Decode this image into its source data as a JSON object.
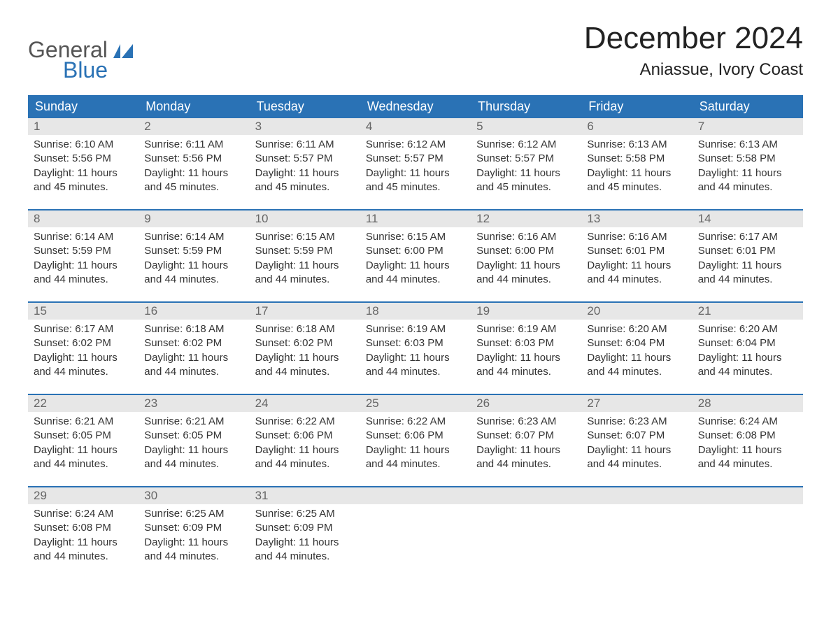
{
  "logo": {
    "main": "General",
    "sub": "Blue",
    "flag_color": "#2a72b5",
    "main_color": "#555555",
    "sub_color": "#2a72b5"
  },
  "title": "December 2024",
  "location": "Aniassue, Ivory Coast",
  "colors": {
    "header_bg": "#2a72b5",
    "header_text": "#ffffff",
    "daynum_bg": "#e7e7e7",
    "daynum_text": "#666666",
    "body_text": "#333333",
    "week_border": "#2a72b5",
    "page_bg": "#ffffff"
  },
  "day_names": [
    "Sunday",
    "Monday",
    "Tuesday",
    "Wednesday",
    "Thursday",
    "Friday",
    "Saturday"
  ],
  "weeks": [
    [
      {
        "num": "1",
        "sunrise": "Sunrise: 6:10 AM",
        "sunset": "Sunset: 5:56 PM",
        "daylight1": "Daylight: 11 hours",
        "daylight2": "and 45 minutes."
      },
      {
        "num": "2",
        "sunrise": "Sunrise: 6:11 AM",
        "sunset": "Sunset: 5:56 PM",
        "daylight1": "Daylight: 11 hours",
        "daylight2": "and 45 minutes."
      },
      {
        "num": "3",
        "sunrise": "Sunrise: 6:11 AM",
        "sunset": "Sunset: 5:57 PM",
        "daylight1": "Daylight: 11 hours",
        "daylight2": "and 45 minutes."
      },
      {
        "num": "4",
        "sunrise": "Sunrise: 6:12 AM",
        "sunset": "Sunset: 5:57 PM",
        "daylight1": "Daylight: 11 hours",
        "daylight2": "and 45 minutes."
      },
      {
        "num": "5",
        "sunrise": "Sunrise: 6:12 AM",
        "sunset": "Sunset: 5:57 PM",
        "daylight1": "Daylight: 11 hours",
        "daylight2": "and 45 minutes."
      },
      {
        "num": "6",
        "sunrise": "Sunrise: 6:13 AM",
        "sunset": "Sunset: 5:58 PM",
        "daylight1": "Daylight: 11 hours",
        "daylight2": "and 45 minutes."
      },
      {
        "num": "7",
        "sunrise": "Sunrise: 6:13 AM",
        "sunset": "Sunset: 5:58 PM",
        "daylight1": "Daylight: 11 hours",
        "daylight2": "and 44 minutes."
      }
    ],
    [
      {
        "num": "8",
        "sunrise": "Sunrise: 6:14 AM",
        "sunset": "Sunset: 5:59 PM",
        "daylight1": "Daylight: 11 hours",
        "daylight2": "and 44 minutes."
      },
      {
        "num": "9",
        "sunrise": "Sunrise: 6:14 AM",
        "sunset": "Sunset: 5:59 PM",
        "daylight1": "Daylight: 11 hours",
        "daylight2": "and 44 minutes."
      },
      {
        "num": "10",
        "sunrise": "Sunrise: 6:15 AM",
        "sunset": "Sunset: 5:59 PM",
        "daylight1": "Daylight: 11 hours",
        "daylight2": "and 44 minutes."
      },
      {
        "num": "11",
        "sunrise": "Sunrise: 6:15 AM",
        "sunset": "Sunset: 6:00 PM",
        "daylight1": "Daylight: 11 hours",
        "daylight2": "and 44 minutes."
      },
      {
        "num": "12",
        "sunrise": "Sunrise: 6:16 AM",
        "sunset": "Sunset: 6:00 PM",
        "daylight1": "Daylight: 11 hours",
        "daylight2": "and 44 minutes."
      },
      {
        "num": "13",
        "sunrise": "Sunrise: 6:16 AM",
        "sunset": "Sunset: 6:01 PM",
        "daylight1": "Daylight: 11 hours",
        "daylight2": "and 44 minutes."
      },
      {
        "num": "14",
        "sunrise": "Sunrise: 6:17 AM",
        "sunset": "Sunset: 6:01 PM",
        "daylight1": "Daylight: 11 hours",
        "daylight2": "and 44 minutes."
      }
    ],
    [
      {
        "num": "15",
        "sunrise": "Sunrise: 6:17 AM",
        "sunset": "Sunset: 6:02 PM",
        "daylight1": "Daylight: 11 hours",
        "daylight2": "and 44 minutes."
      },
      {
        "num": "16",
        "sunrise": "Sunrise: 6:18 AM",
        "sunset": "Sunset: 6:02 PM",
        "daylight1": "Daylight: 11 hours",
        "daylight2": "and 44 minutes."
      },
      {
        "num": "17",
        "sunrise": "Sunrise: 6:18 AM",
        "sunset": "Sunset: 6:02 PM",
        "daylight1": "Daylight: 11 hours",
        "daylight2": "and 44 minutes."
      },
      {
        "num": "18",
        "sunrise": "Sunrise: 6:19 AM",
        "sunset": "Sunset: 6:03 PM",
        "daylight1": "Daylight: 11 hours",
        "daylight2": "and 44 minutes."
      },
      {
        "num": "19",
        "sunrise": "Sunrise: 6:19 AM",
        "sunset": "Sunset: 6:03 PM",
        "daylight1": "Daylight: 11 hours",
        "daylight2": "and 44 minutes."
      },
      {
        "num": "20",
        "sunrise": "Sunrise: 6:20 AM",
        "sunset": "Sunset: 6:04 PM",
        "daylight1": "Daylight: 11 hours",
        "daylight2": "and 44 minutes."
      },
      {
        "num": "21",
        "sunrise": "Sunrise: 6:20 AM",
        "sunset": "Sunset: 6:04 PM",
        "daylight1": "Daylight: 11 hours",
        "daylight2": "and 44 minutes."
      }
    ],
    [
      {
        "num": "22",
        "sunrise": "Sunrise: 6:21 AM",
        "sunset": "Sunset: 6:05 PM",
        "daylight1": "Daylight: 11 hours",
        "daylight2": "and 44 minutes."
      },
      {
        "num": "23",
        "sunrise": "Sunrise: 6:21 AM",
        "sunset": "Sunset: 6:05 PM",
        "daylight1": "Daylight: 11 hours",
        "daylight2": "and 44 minutes."
      },
      {
        "num": "24",
        "sunrise": "Sunrise: 6:22 AM",
        "sunset": "Sunset: 6:06 PM",
        "daylight1": "Daylight: 11 hours",
        "daylight2": "and 44 minutes."
      },
      {
        "num": "25",
        "sunrise": "Sunrise: 6:22 AM",
        "sunset": "Sunset: 6:06 PM",
        "daylight1": "Daylight: 11 hours",
        "daylight2": "and 44 minutes."
      },
      {
        "num": "26",
        "sunrise": "Sunrise: 6:23 AM",
        "sunset": "Sunset: 6:07 PM",
        "daylight1": "Daylight: 11 hours",
        "daylight2": "and 44 minutes."
      },
      {
        "num": "27",
        "sunrise": "Sunrise: 6:23 AM",
        "sunset": "Sunset: 6:07 PM",
        "daylight1": "Daylight: 11 hours",
        "daylight2": "and 44 minutes."
      },
      {
        "num": "28",
        "sunrise": "Sunrise: 6:24 AM",
        "sunset": "Sunset: 6:08 PM",
        "daylight1": "Daylight: 11 hours",
        "daylight2": "and 44 minutes."
      }
    ],
    [
      {
        "num": "29",
        "sunrise": "Sunrise: 6:24 AM",
        "sunset": "Sunset: 6:08 PM",
        "daylight1": "Daylight: 11 hours",
        "daylight2": "and 44 minutes."
      },
      {
        "num": "30",
        "sunrise": "Sunrise: 6:25 AM",
        "sunset": "Sunset: 6:09 PM",
        "daylight1": "Daylight: 11 hours",
        "daylight2": "and 44 minutes."
      },
      {
        "num": "31",
        "sunrise": "Sunrise: 6:25 AM",
        "sunset": "Sunset: 6:09 PM",
        "daylight1": "Daylight: 11 hours",
        "daylight2": "and 44 minutes."
      },
      {
        "empty": true
      },
      {
        "empty": true
      },
      {
        "empty": true
      },
      {
        "empty": true
      }
    ]
  ]
}
